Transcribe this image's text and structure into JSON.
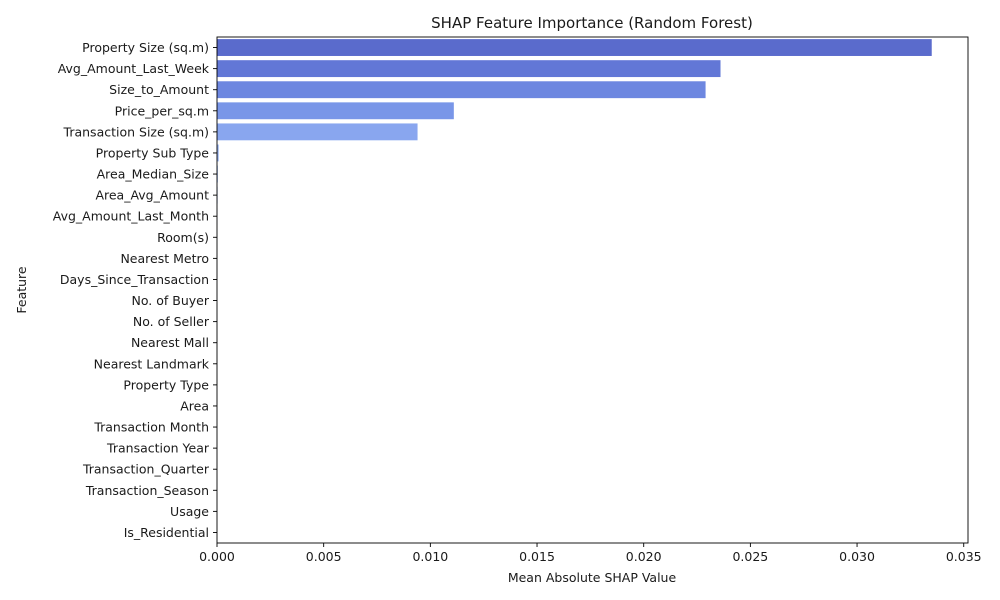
{
  "chart_data": {
    "type": "bar",
    "orientation": "horizontal",
    "title": "SHAP Feature Importance (Random Forest)",
    "xlabel": "Mean Absolute SHAP Value",
    "ylabel": "Feature",
    "xlim": [
      0,
      0.0352
    ],
    "xticks": [
      0.0,
      0.005,
      0.01,
      0.015,
      0.02,
      0.025,
      0.03,
      0.035
    ],
    "xtick_labels": [
      "0.000",
      "0.005",
      "0.010",
      "0.015",
      "0.020",
      "0.025",
      "0.030",
      "0.035"
    ],
    "grid": false,
    "categories": [
      "Property Size (sq.m)",
      "Avg_Amount_Last_Week",
      "Size_to_Amount",
      "Price_per_sq.m",
      "Transaction Size (sq.m)",
      "Property Sub Type",
      "Area_Median_Size",
      "Area_Avg_Amount",
      "Avg_Amount_Last_Month",
      "Room(s)",
      "Nearest Metro",
      "Days_Since_Transaction",
      "No. of Buyer",
      "No. of Seller",
      "Nearest Mall",
      "Nearest Landmark",
      "Property Type",
      "Area",
      "Transaction Month",
      "Transaction Year",
      "Transaction_Quarter",
      "Transaction_Season",
      "Usage",
      "Is_Residential"
    ],
    "values": [
      0.0335,
      0.0236,
      0.0229,
      0.0111,
      0.0094,
      8e-05,
      4e-05,
      3e-05,
      2e-05,
      1e-05,
      1e-05,
      1e-05,
      0.0,
      0.0,
      0.0,
      0.0,
      0.0,
      0.0,
      0.0,
      0.0,
      0.0,
      0.0,
      0.0,
      0.0
    ],
    "colors": [
      "#5a6bcc",
      "#6277d6",
      "#6d87e0",
      "#7996e8",
      "#89a6ef",
      "#98b4f2",
      "#a7c1f4",
      "#b6cdf5",
      "#c3d5f4",
      "#cfdcf2",
      "#d9e1ee",
      "#e0e2e7",
      "#e6dcd5",
      "#ecd3c4",
      "#f0c8b1",
      "#f2bb9d",
      "#f3ad89",
      "#f29d76",
      "#ee8c65",
      "#e77a55",
      "#de6747",
      "#d3543b",
      "#c63f31",
      "#b8292a"
    ]
  }
}
